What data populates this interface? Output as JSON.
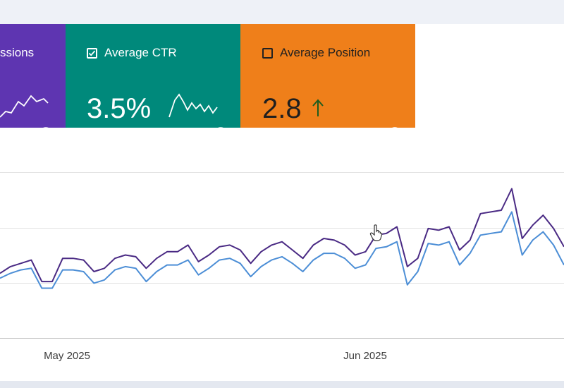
{
  "cards": {
    "clicks": {
      "label": "Total impressions",
      "label_visible": "ssions",
      "color": "#5e35b1"
    },
    "ctr": {
      "label": "Average CTR",
      "value": "3.5%",
      "checked": true,
      "color": "#00897b"
    },
    "position": {
      "label": "Average Position",
      "value": "2.8",
      "checked": false,
      "trend": "up-arrow-icon",
      "color": "#ef7f1a"
    }
  },
  "help_glyph": "?",
  "chart_data": {
    "type": "line",
    "x_ticks": [
      "May 2025",
      "Jun 2025"
    ],
    "series": [
      {
        "color": "#4a2a84",
        "values": [
          39,
          43,
          45,
          47,
          34,
          34,
          48,
          48,
          47,
          40,
          42,
          48,
          50,
          49,
          42,
          48,
          52,
          52,
          56,
          46,
          50,
          55,
          56,
          53,
          45,
          52,
          56,
          58,
          53,
          48,
          56,
          60,
          59,
          56,
          50,
          52,
          62,
          63,
          67,
          43,
          48,
          66,
          65,
          67,
          53,
          59,
          75,
          76,
          77,
          90,
          60,
          68,
          74,
          66,
          55
        ]
      },
      {
        "color": "#4c8ed6",
        "values": [
          36,
          39,
          41,
          42,
          30,
          30,
          41,
          41,
          40,
          33,
          35,
          41,
          43,
          42,
          34,
          40,
          44,
          44,
          47,
          38,
          42,
          47,
          48,
          45,
          37,
          43,
          47,
          49,
          45,
          40,
          47,
          51,
          51,
          48,
          42,
          44,
          54,
          55,
          58,
          32,
          40,
          57,
          56,
          58,
          44,
          51,
          62,
          63,
          64,
          76,
          50,
          59,
          64,
          56,
          44
        ]
      }
    ]
  }
}
